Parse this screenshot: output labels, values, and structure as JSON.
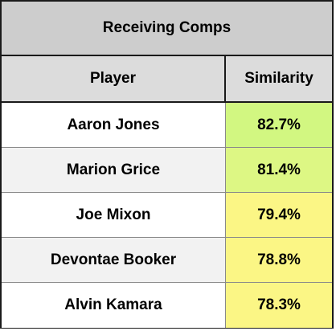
{
  "table": {
    "title": "Receiving Comps",
    "headers": {
      "player": "Player",
      "similarity": "Similarity"
    },
    "header_bg": "#dcdcdc",
    "title_bg": "#cdcdcd",
    "rows": [
      {
        "player": "Aaron Jones",
        "similarity": "82.7%",
        "row_bg": "#ffffff",
        "sim_bg": "#d2f781"
      },
      {
        "player": "Marion Grice",
        "similarity": "81.4%",
        "row_bg": "#f2f2f2",
        "sim_bg": "#ddf784"
      },
      {
        "player": "Joe Mixon",
        "similarity": "79.4%",
        "row_bg": "#ffffff",
        "sim_bg": "#fbf685"
      },
      {
        "player": "Devontae Booker",
        "similarity": "78.8%",
        "row_bg": "#f2f2f2",
        "sim_bg": "#fbf685"
      },
      {
        "player": "Alvin Kamara",
        "similarity": "78.3%",
        "row_bg": "#ffffff",
        "sim_bg": "#fbf685"
      }
    ]
  }
}
